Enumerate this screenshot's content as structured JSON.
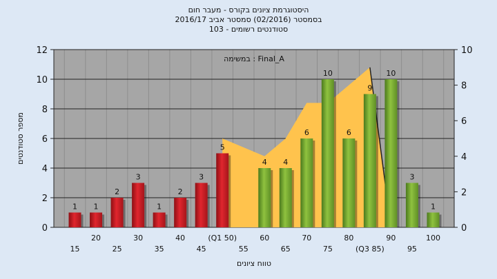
{
  "header": {
    "title_line1": "היסטוגרמת ציונים בקורס - מעבר חום",
    "title_line2": "בסמסטר  (02/2016)  סמסטר אביב 2016/17",
    "title_line3": "סטודנטים רשומים - 103"
  },
  "chart_data": {
    "type": "bar",
    "annotation": "במשימה : Final_A",
    "xlabel": "טווח ציונים",
    "ylabel": "מספר סטודנטים",
    "ylim": [
      0,
      12
    ],
    "y_ticks": [
      0,
      2,
      4,
      6,
      8,
      10,
      12
    ],
    "y2lim": [
      0,
      10
    ],
    "y2_ticks": [
      0,
      2,
      4,
      6,
      8,
      10
    ],
    "grid": true,
    "categories": [
      "15",
      "20",
      "25",
      "30",
      "35",
      "40",
      "45",
      "(Q1 50)",
      "55",
      "60",
      "65",
      "70",
      "75",
      "80",
      "(Q3 85)",
      "90",
      "95",
      "100"
    ],
    "values": [
      1,
      1,
      2,
      3,
      1,
      2,
      3,
      5,
      0,
      4,
      4,
      6,
      10,
      6,
      9,
      10,
      3,
      1
    ],
    "bar_color_low": "#e0262e",
    "bar_color_high": "#8fc23f",
    "area_color": "#ffc34d",
    "background_color": "#a6a6a6",
    "page_background": "#dde8f5",
    "area_series": {
      "x_categories": [
        "(Q1 50)",
        "60",
        "65",
        "70",
        "75",
        "80",
        "(Q3 85)",
        "90"
      ],
      "values": [
        5,
        4,
        5,
        7,
        7,
        8,
        9,
        0
      ]
    }
  }
}
